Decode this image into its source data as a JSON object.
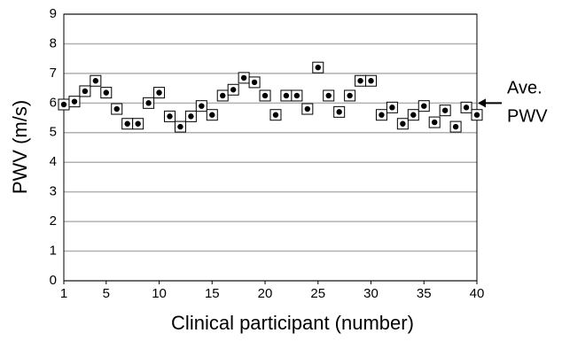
{
  "chart_data": {
    "type": "scatter",
    "x_label": "Clinical participant (number)",
    "y_label": "PWV (m/s)",
    "annotation": [
      "Ave.",
      "PWV"
    ],
    "annotation_value": 6,
    "x": [
      1,
      2,
      3,
      4,
      5,
      6,
      7,
      8,
      9,
      10,
      11,
      12,
      13,
      14,
      15,
      16,
      17,
      18,
      19,
      20,
      21,
      22,
      23,
      24,
      25,
      26,
      27,
      28,
      29,
      30,
      31,
      32,
      33,
      34,
      35,
      36,
      37,
      38,
      39,
      40
    ],
    "values": [
      5.95,
      6.05,
      6.4,
      6.75,
      6.35,
      5.8,
      5.3,
      5.3,
      6.0,
      6.35,
      5.55,
      5.2,
      5.55,
      5.9,
      5.6,
      6.25,
      6.45,
      6.85,
      6.7,
      6.25,
      5.6,
      6.25,
      6.25,
      5.8,
      7.2,
      6.25,
      5.7,
      6.25,
      6.75,
      6.75,
      5.6,
      5.85,
      5.3,
      5.6,
      5.9,
      5.35,
      5.75,
      5.2,
      5.85,
      5.6
    ],
    "color": "#000000",
    "xlim": [
      1,
      40
    ],
    "xticks": [
      1,
      5,
      10,
      15,
      20,
      25,
      30,
      35,
      40
    ],
    "ylim": [
      0,
      9
    ],
    "yticks": [
      0,
      1,
      2,
      3,
      4,
      5,
      6,
      7,
      8,
      9
    ],
    "grid": true
  }
}
